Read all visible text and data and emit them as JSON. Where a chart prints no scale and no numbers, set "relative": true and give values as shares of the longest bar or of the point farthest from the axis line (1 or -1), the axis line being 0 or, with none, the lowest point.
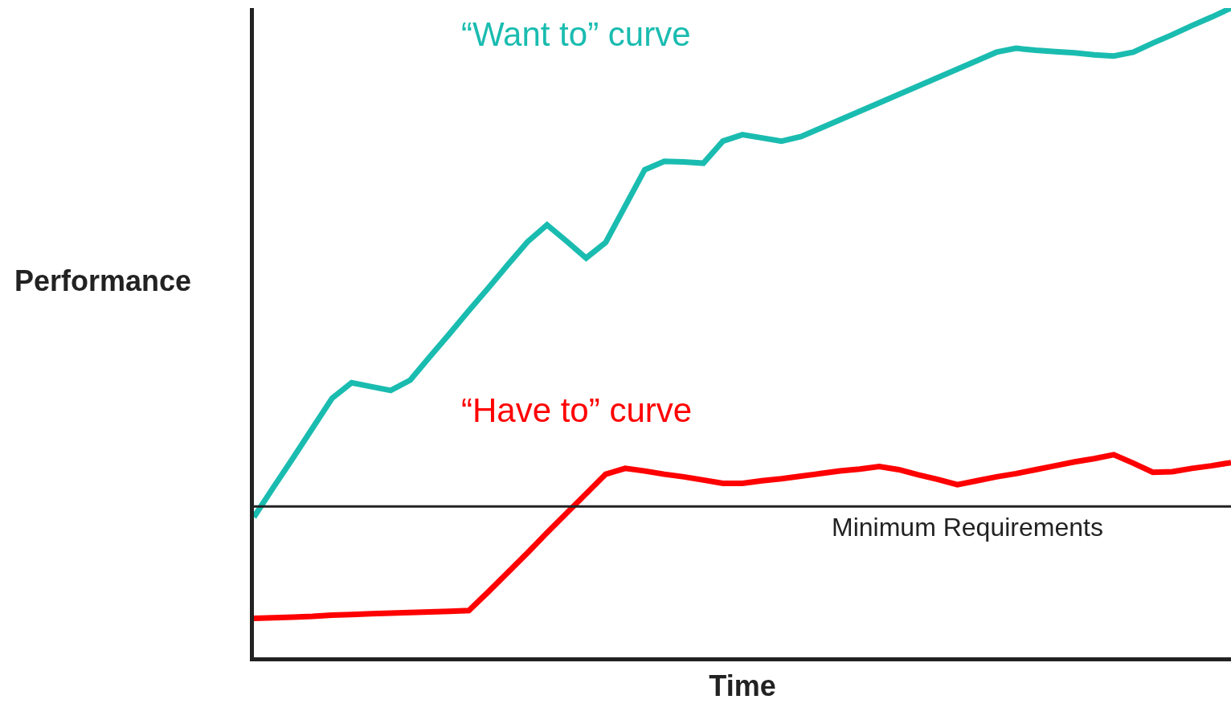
{
  "chart_data": {
    "type": "line",
    "relative": true,
    "xlabel": "Time",
    "ylabel": "Performance",
    "tick_labels": false,
    "grid": false,
    "legend": false,
    "marker": "none",
    "line_style": "solid",
    "categories": [
      null,
      null,
      null,
      null,
      null,
      null,
      null,
      null,
      null,
      null,
      null,
      null,
      null,
      null,
      null,
      null,
      null,
      null,
      null,
      null,
      null,
      null,
      null,
      null,
      null,
      null,
      null,
      null,
      null,
      null,
      null,
      null,
      null,
      null,
      null,
      null,
      null,
      null,
      null,
      null,
      null,
      null,
      null,
      null,
      null,
      null,
      null,
      null,
      null,
      null,
      null
    ],
    "series": [
      {
        "name": "“Want to” curve",
        "color": "#1abcb0",
        "values": [
          0.216,
          0.262,
          0.307,
          0.353,
          0.399,
          0.423,
          0.417,
          0.411,
          0.427,
          0.463,
          0.498,
          0.534,
          0.569,
          0.605,
          0.64,
          0.666,
          0.641,
          0.615,
          0.639,
          0.695,
          0.751,
          0.764,
          0.763,
          0.761,
          0.795,
          0.805,
          0.8,
          0.795,
          0.802,
          0.815,
          0.828,
          0.841,
          0.854,
          0.867,
          0.88,
          0.893,
          0.906,
          0.919,
          0.932,
          0.938,
          0.935,
          0.933,
          0.931,
          0.928,
          0.926,
          0.932,
          0.946,
          0.959,
          0.973,
          0.986,
          1.0
        ]
      },
      {
        "name": "“Have to” curve",
        "color": "#ff0000",
        "values": [
          0.06,
          0.061,
          0.062,
          0.063,
          0.065,
          0.066,
          0.067,
          0.068,
          0.069,
          0.07,
          0.071,
          0.072,
          0.101,
          0.131,
          0.161,
          0.192,
          0.222,
          0.252,
          0.282,
          0.291,
          0.287,
          0.282,
          0.278,
          0.273,
          0.268,
          0.268,
          0.272,
          0.275,
          0.279,
          0.283,
          0.287,
          0.29,
          0.294,
          0.289,
          0.281,
          0.274,
          0.266,
          0.272,
          0.278,
          0.283,
          0.289,
          0.295,
          0.301,
          0.306,
          0.312,
          0.299,
          0.285,
          0.286,
          0.291,
          0.295,
          0.3
        ]
      }
    ],
    "ref_lines": [
      {
        "axis": "y",
        "value": 0.2325,
        "label": "Minimum Requirements",
        "color": "#222222"
      }
    ]
  }
}
